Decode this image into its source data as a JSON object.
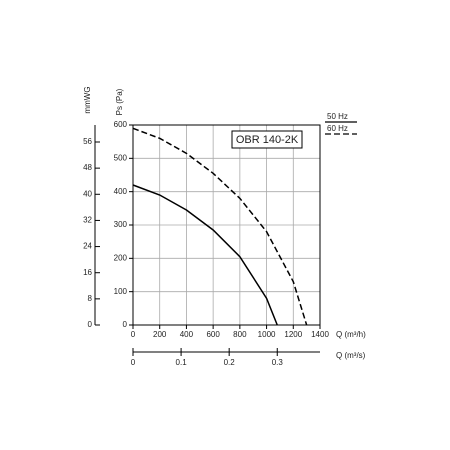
{
  "chart_data": {
    "type": "line",
    "title": "OBR 140-2K",
    "ylabel": "Ps (Pa)",
    "y2label": "mmWG",
    "xlabel": "Q (m³/h)",
    "x2label": "Q (m³/s)",
    "xlim": [
      0,
      1400
    ],
    "xticks": [
      0,
      200,
      400,
      600,
      800,
      1000,
      1200,
      1400
    ],
    "ylim": [
      0,
      600
    ],
    "yticks": [
      0,
      100,
      200,
      300,
      400,
      500,
      600
    ],
    "y2lim": [
      0,
      61.2
    ],
    "y2ticks": [
      0,
      8,
      16,
      24,
      32,
      40,
      48,
      56
    ],
    "x2lim": [
      0,
      0.3889
    ],
    "x2ticks": [
      0,
      0.1,
      0.2,
      0.3
    ],
    "grid": true,
    "legend": "upper right",
    "series": [
      {
        "name": "50 Hz",
        "color": "#000000",
        "dash": "solid",
        "x": [
          0,
          200,
          400,
          600,
          800,
          1000,
          1080
        ],
        "values": [
          420,
          390,
          345,
          285,
          205,
          80,
          0
        ]
      },
      {
        "name": "60 Hz",
        "color": "#000000",
        "dash": "dashed",
        "x": [
          0,
          200,
          400,
          600,
          800,
          1000,
          1200,
          1300
        ],
        "values": [
          590,
          560,
          515,
          455,
          380,
          280,
          130,
          0
        ]
      }
    ]
  }
}
